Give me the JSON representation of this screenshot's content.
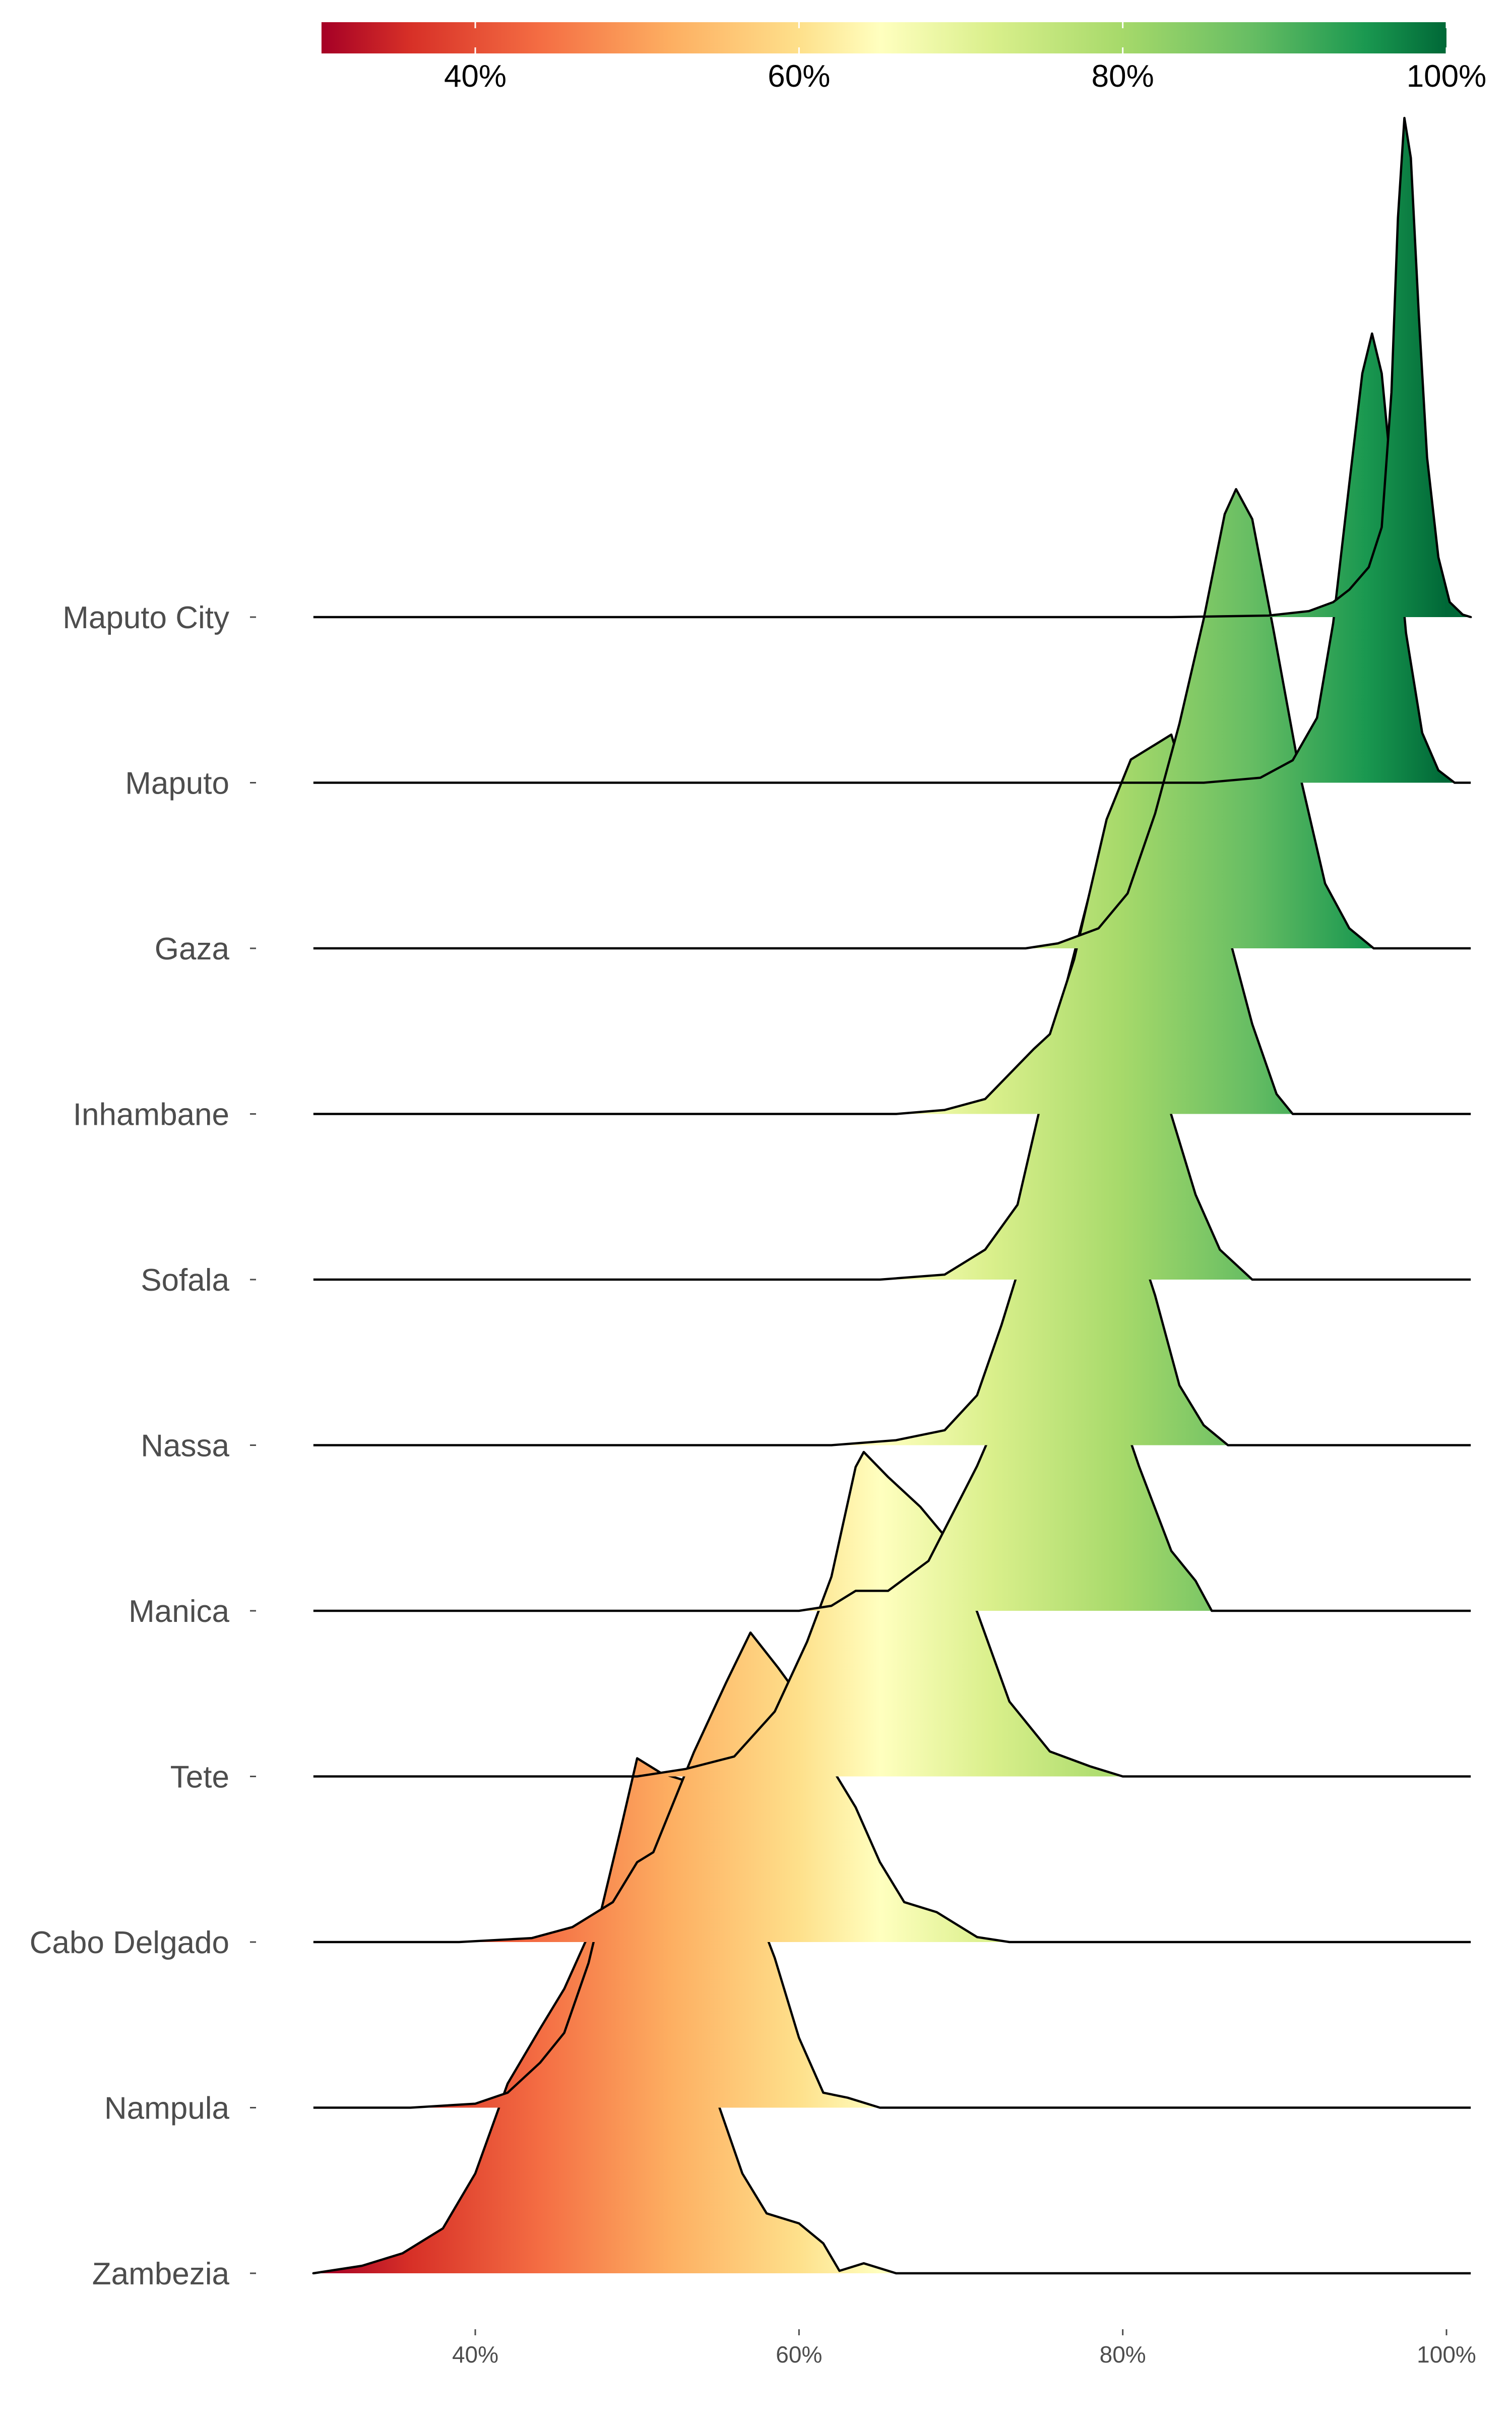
{
  "chart_data": {
    "type": "ridgeline",
    "x_axis": {
      "min": 30,
      "max": 101.5,
      "ticks": [
        40,
        60,
        80,
        100
      ],
      "tick_labels": [
        "40%",
        "60%",
        "80%",
        "100%"
      ]
    },
    "colorbar": {
      "position": "top",
      "range": [
        30.5,
        100
      ],
      "palette": "RdYlGn",
      "stops": [
        {
          "value": 30.5,
          "color": "#A50026"
        },
        {
          "value": 36,
          "color": "#D73027"
        },
        {
          "value": 44,
          "color": "#F46D43"
        },
        {
          "value": 52,
          "color": "#FDAE61"
        },
        {
          "value": 60,
          "color": "#FEE08B"
        },
        {
          "value": 65,
          "color": "#FFFFBF"
        },
        {
          "value": 72,
          "color": "#D9EF8B"
        },
        {
          "value": 80,
          "color": "#A6D96A"
        },
        {
          "value": 88,
          "color": "#66BD63"
        },
        {
          "value": 95,
          "color": "#1A9850"
        },
        {
          "value": 100,
          "color": "#006837"
        }
      ],
      "ticks": [
        40,
        60,
        80,
        100
      ],
      "tick_labels": [
        "40%",
        "60%",
        "80%",
        "100%"
      ]
    },
    "series": [
      {
        "name": "Maputo City",
        "density": [
          [
            83,
            0
          ],
          [
            89,
            0.003
          ],
          [
            91.5,
            0.012
          ],
          [
            93,
            0.03
          ],
          [
            94,
            0.055
          ],
          [
            95.2,
            0.1
          ],
          [
            96,
            0.18
          ],
          [
            96.6,
            0.45
          ],
          [
            97,
            0.8
          ],
          [
            97.4,
            1.0
          ],
          [
            97.8,
            0.92
          ],
          [
            98.3,
            0.6
          ],
          [
            98.8,
            0.32
          ],
          [
            99.5,
            0.12
          ],
          [
            100.2,
            0.03
          ],
          [
            101,
            0.005
          ],
          [
            101.5,
            0
          ]
        ]
      },
      {
        "name": "Maputo",
        "density": [
          [
            85,
            0
          ],
          [
            88.5,
            0.01
          ],
          [
            90.5,
            0.045
          ],
          [
            92,
            0.13
          ],
          [
            93,
            0.32
          ],
          [
            94,
            0.6
          ],
          [
            94.8,
            0.82
          ],
          [
            95.4,
            0.9
          ],
          [
            96,
            0.82
          ],
          [
            96.8,
            0.55
          ],
          [
            97.5,
            0.3
          ],
          [
            98.5,
            0.1
          ],
          [
            99.5,
            0.025
          ],
          [
            100.5,
            0
          ]
        ]
      },
      {
        "name": "Gaza",
        "density": [
          [
            74,
            0
          ],
          [
            76,
            0.01
          ],
          [
            78.5,
            0.04
          ],
          [
            80.3,
            0.11
          ],
          [
            82,
            0.27
          ],
          [
            83.5,
            0.45
          ],
          [
            85,
            0.66
          ],
          [
            86.3,
            0.87
          ],
          [
            87,
            0.92
          ],
          [
            88,
            0.86
          ],
          [
            89.3,
            0.64
          ],
          [
            91,
            0.34
          ],
          [
            92.5,
            0.13
          ],
          [
            94,
            0.04
          ],
          [
            95.5,
            0
          ]
        ]
      },
      {
        "name": "Inhambane",
        "density": [
          [
            66,
            0
          ],
          [
            69,
            0.008
          ],
          [
            71.5,
            0.03
          ],
          [
            73,
            0.08
          ],
          [
            74.5,
            0.13
          ],
          [
            75.5,
            0.16
          ],
          [
            77,
            0.31
          ],
          [
            79,
            0.59
          ],
          [
            80.5,
            0.71
          ],
          [
            82,
            0.74
          ],
          [
            83,
            0.76
          ],
          [
            84.5,
            0.6
          ],
          [
            86.2,
            0.4
          ],
          [
            88,
            0.18
          ],
          [
            89.5,
            0.04
          ],
          [
            90.5,
            0
          ]
        ]
      },
      {
        "name": "Sofala",
        "density": [
          [
            65,
            0
          ],
          [
            69,
            0.01
          ],
          [
            71.5,
            0.06
          ],
          [
            73.5,
            0.15
          ],
          [
            75,
            0.36
          ],
          [
            76.5,
            0.59
          ],
          [
            78,
            0.78
          ],
          [
            78.6,
            0.79
          ],
          [
            79.8,
            0.66
          ],
          [
            81.5,
            0.49
          ],
          [
            83,
            0.33
          ],
          [
            84.5,
            0.17
          ],
          [
            86,
            0.06
          ],
          [
            88,
            0
          ]
        ]
      },
      {
        "name": "Nassa",
        "density": [
          [
            62,
            0
          ],
          [
            66,
            0.01
          ],
          [
            69,
            0.03
          ],
          [
            71,
            0.1
          ],
          [
            72.5,
            0.24
          ],
          [
            74.5,
            0.45
          ],
          [
            76,
            0.61
          ],
          [
            77,
            0.66
          ],
          [
            78.5,
            0.59
          ],
          [
            80,
            0.5
          ],
          [
            82,
            0.3
          ],
          [
            83.5,
            0.12
          ],
          [
            85,
            0.04
          ],
          [
            86.5,
            0
          ]
        ]
      },
      {
        "name": "Manica",
        "density": [
          [
            60,
            0
          ],
          [
            62,
            0.01
          ],
          [
            63.5,
            0.04
          ],
          [
            65.5,
            0.04
          ],
          [
            68,
            0.1
          ],
          [
            71,
            0.29
          ],
          [
            73,
            0.44
          ],
          [
            74.5,
            0.58
          ],
          [
            76,
            0.65
          ],
          [
            77.5,
            0.62
          ],
          [
            79,
            0.48
          ],
          [
            81,
            0.29
          ],
          [
            83,
            0.12
          ],
          [
            84.5,
            0.06
          ],
          [
            85.5,
            0
          ]
        ]
      },
      {
        "name": "Tete",
        "density": [
          [
            50,
            0
          ],
          [
            53,
            0.015
          ],
          [
            56,
            0.04
          ],
          [
            58.5,
            0.13
          ],
          [
            60.5,
            0.27
          ],
          [
            62,
            0.4
          ],
          [
            63.5,
            0.62
          ],
          [
            64,
            0.65
          ],
          [
            65.5,
            0.6
          ],
          [
            67.5,
            0.54
          ],
          [
            69.3,
            0.47
          ],
          [
            71,
            0.33
          ],
          [
            73,
            0.15
          ],
          [
            75.5,
            0.05
          ],
          [
            78,
            0.02
          ],
          [
            80,
            0
          ]
        ]
      },
      {
        "name": "Cabo Delgado",
        "density": [
          [
            39,
            0
          ],
          [
            43.5,
            0.008
          ],
          [
            46,
            0.03
          ],
          [
            48.5,
            0.08
          ],
          [
            50,
            0.16
          ],
          [
            51,
            0.18
          ],
          [
            53.5,
            0.38
          ],
          [
            55.5,
            0.52
          ],
          [
            57,
            0.62
          ],
          [
            58.7,
            0.55
          ],
          [
            60.5,
            0.47
          ],
          [
            62,
            0.35
          ],
          [
            63.5,
            0.27
          ],
          [
            65,
            0.16
          ],
          [
            66.5,
            0.08
          ],
          [
            68.5,
            0.06
          ],
          [
            71,
            0.01
          ],
          [
            73,
            0
          ]
        ]
      },
      {
        "name": "Nampula",
        "density": [
          [
            36,
            0
          ],
          [
            40,
            0.008
          ],
          [
            42,
            0.03
          ],
          [
            44,
            0.09
          ],
          [
            45.5,
            0.15
          ],
          [
            47,
            0.29
          ],
          [
            49,
            0.56
          ],
          [
            50,
            0.7
          ],
          [
            51.5,
            0.67
          ],
          [
            53.5,
            0.65
          ],
          [
            55,
            0.6
          ],
          [
            56.5,
            0.47
          ],
          [
            58.5,
            0.3
          ],
          [
            60,
            0.14
          ],
          [
            61.5,
            0.03
          ],
          [
            63,
            0.02
          ],
          [
            65,
            0
          ]
        ]
      },
      {
        "name": "Zambezia",
        "density": [
          [
            30,
            0
          ],
          [
            33,
            0.015
          ],
          [
            35.5,
            0.04
          ],
          [
            38,
            0.09
          ],
          [
            40,
            0.2
          ],
          [
            42,
            0.38
          ],
          [
            44,
            0.49
          ],
          [
            45.5,
            0.57
          ],
          [
            47.3,
            0.7
          ],
          [
            49,
            0.64
          ],
          [
            50.6,
            0.5
          ],
          [
            52,
            0.36
          ],
          [
            53.5,
            0.4
          ],
          [
            55,
            0.34
          ],
          [
            56.5,
            0.2
          ],
          [
            58,
            0.12
          ],
          [
            60,
            0.1
          ],
          [
            61.5,
            0.06
          ],
          [
            62.5,
            0.005
          ],
          [
            64,
            0.02
          ],
          [
            66,
            0
          ]
        ]
      }
    ]
  }
}
